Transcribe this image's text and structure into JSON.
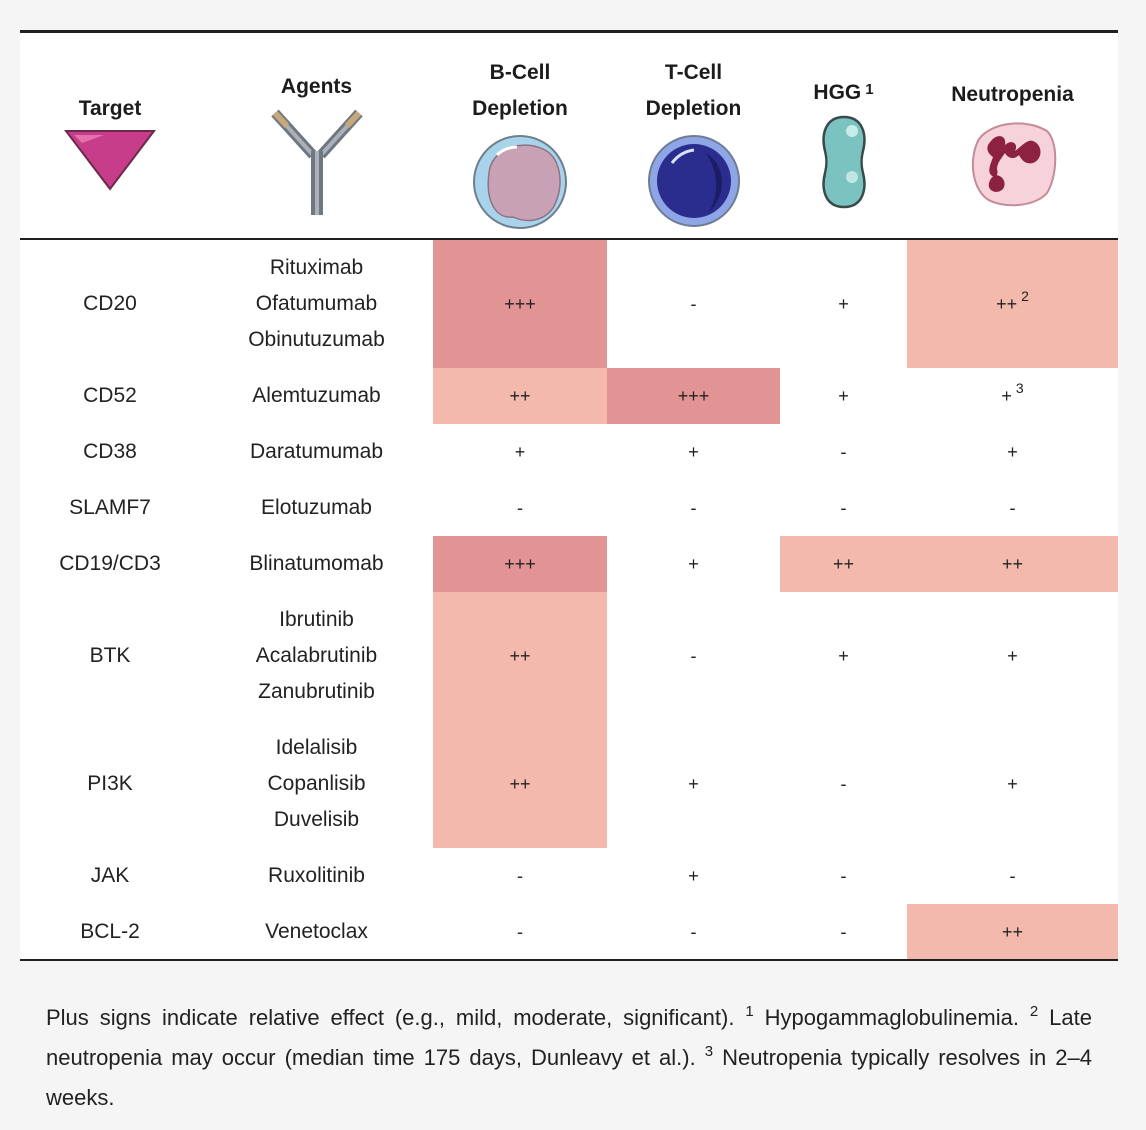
{
  "columns": [
    {
      "label_lines": [
        "Target"
      ],
      "icon": "target-triangle-icon"
    },
    {
      "label_lines": [
        "Agents"
      ],
      "icon": "antibody-icon"
    },
    {
      "label_lines": [
        "B-Cell",
        "Depletion"
      ],
      "icon": "b-cell-icon"
    },
    {
      "label_lines": [
        "T-Cell",
        "Depletion"
      ],
      "icon": "t-cell-icon"
    },
    {
      "label_lines": [
        "HGG"
      ],
      "superscript": "1",
      "icon": "immunoglobulin-icon"
    },
    {
      "label_lines": [
        "Neutropenia"
      ],
      "icon": "neutrophil-icon"
    }
  ],
  "rows": [
    {
      "target": "CD20",
      "agents": [
        "Rituximab",
        "Ofatumumab",
        "Obinutuzumab"
      ],
      "bcell": "+++",
      "tcell": "-",
      "hgg": "+",
      "neutropenia": "++",
      "neutropenia_sup": "2"
    },
    {
      "target": "CD52",
      "agents": [
        "Alemtuzumab"
      ],
      "bcell": "++",
      "tcell": "+++",
      "hgg": "+",
      "neutropenia": "+",
      "neutropenia_sup": "3"
    },
    {
      "target": "CD38",
      "agents": [
        "Daratumumab"
      ],
      "bcell": "+",
      "tcell": "+",
      "hgg": "-",
      "neutropenia": "+"
    },
    {
      "target": "SLAMF7",
      "agents": [
        "Elotuzumab"
      ],
      "bcell": "-",
      "tcell": "-",
      "hgg": "-",
      "neutropenia": "-"
    },
    {
      "target": "CD19/CD3",
      "agents": [
        "Blinatumomab"
      ],
      "bcell": "+++",
      "tcell": "+",
      "hgg": "++",
      "neutropenia": "++"
    },
    {
      "target": "BTK",
      "agents": [
        "Ibrutinib",
        "Acalabrutinib",
        "Zanubrutinib"
      ],
      "bcell": "++",
      "tcell": "-",
      "hgg": "+",
      "neutropenia": "+"
    },
    {
      "target": "PI3K",
      "agents": [
        "Idelalisib",
        "Copanlisib",
        "Duvelisib"
      ],
      "bcell": "++",
      "tcell": "+",
      "hgg": "-",
      "neutropenia": "+"
    },
    {
      "target": "JAK",
      "agents": [
        "Ruxolitinib"
      ],
      "bcell": "-",
      "tcell": "+",
      "hgg": "-",
      "neutropenia": "-"
    },
    {
      "target": "BCL-2",
      "agents": [
        "Venetoclax"
      ],
      "bcell": "-",
      "tcell": "-",
      "hgg": "-",
      "neutropenia": "++"
    }
  ],
  "shading": {
    "+++": "#e29394",
    "++": "#f4b9ad"
  },
  "footnote": {
    "text1": "Plus signs indicate relative effect (e.g., mild, moderate, significant).",
    "sup1": "1",
    "text2": "Hypogammaglobulinemia.",
    "sup2": "2",
    "text3": "Late neutropenia may occur (median time 175 days, Dunleavy et al.).",
    "sup3": "3",
    "text4": "Neutropenia typically resolves in 2–4 weeks."
  }
}
